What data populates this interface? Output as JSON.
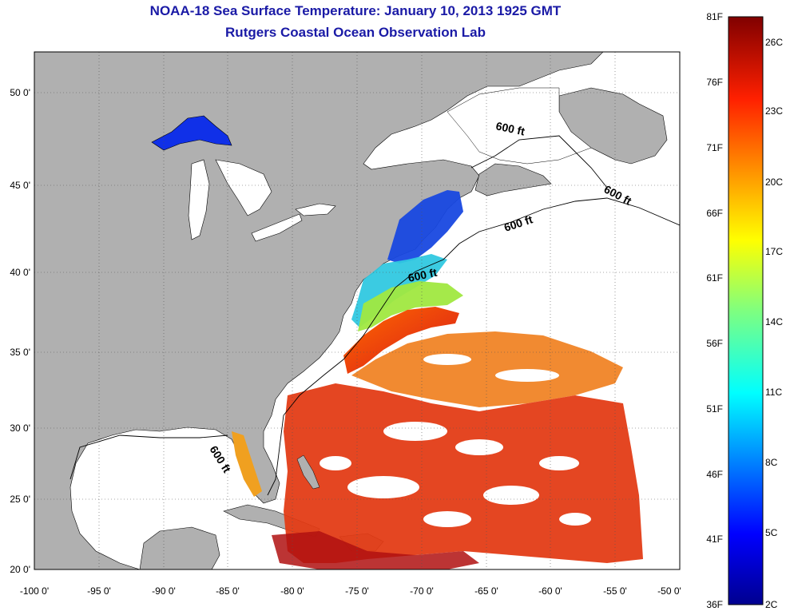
{
  "title": "NOAA-18 Sea Surface Temperature:  January 10, 2013 1925 GMT",
  "subtitle": "Rutgers Coastal Ocean Observation Lab",
  "map": {
    "lon_ticks": [
      "-100 0'",
      "-95 0'",
      "-90 0'",
      "-85 0'",
      "-80 0'",
      "-75 0'",
      "-70 0'",
      "-65 0'",
      "-60 0'",
      "-55 0'",
      "-50 0'"
    ],
    "lat_ticks": [
      "50 0'",
      "45 0'",
      "40 0'",
      "35 0'",
      "30 0'",
      "25 0'",
      "20 0'"
    ],
    "lon_range": [
      -100,
      -50
    ],
    "lat_range": [
      20,
      52
    ],
    "grid": "dotted",
    "contour_label": "600 ft",
    "colors": {
      "land": "#b0b0b0",
      "ocean_no_data": "#ffffff",
      "lakes": "#ffffff"
    }
  },
  "colorbar": {
    "f_labels": [
      "81F",
      "76F",
      "71F",
      "66F",
      "61F",
      "56F",
      "51F",
      "46F",
      "41F",
      "36F"
    ],
    "c_labels": [
      "26C",
      "23C",
      "20C",
      "17C",
      "14C",
      "11C",
      "8C",
      "5C",
      "2C"
    ],
    "colormap": "jet",
    "range_f": [
      36,
      81
    ],
    "range_c": [
      2,
      27
    ]
  }
}
